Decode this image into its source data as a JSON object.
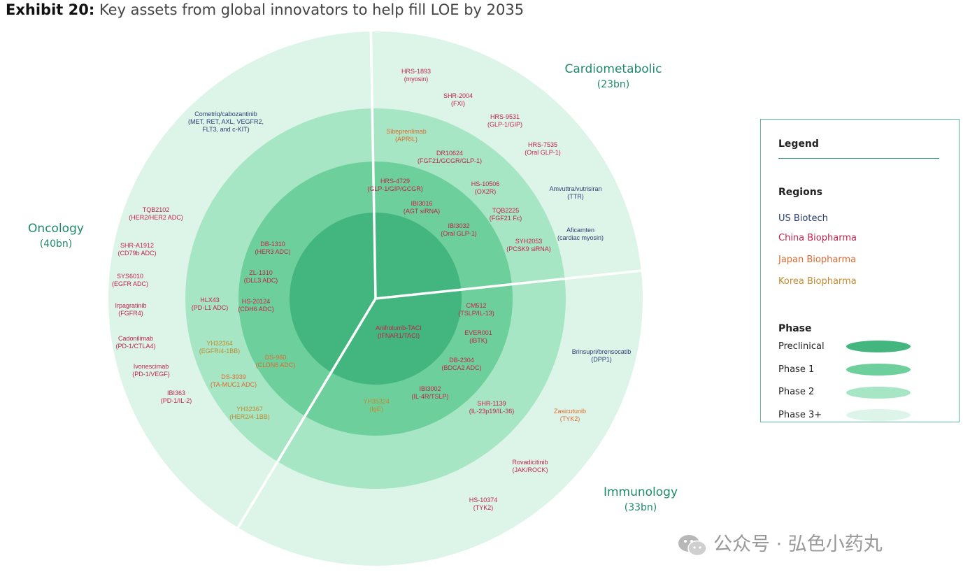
{
  "title": {
    "bold": "Exhibit 20:",
    "text": "Key assets from global innovators to help fill LOE by 2035"
  },
  "colors": {
    "preclinical": "#43b57e",
    "phase1": "#6dd09c",
    "phase2": "#a7e6c4",
    "phase3": "#dcf5e8",
    "us": "#2c3e72",
    "china": "#c2224a",
    "japan": "#e0692f",
    "korea": "#c08a2f",
    "segment_title": "#1e8a6a"
  },
  "segments": [
    {
      "name": "Oncology",
      "size": "(40bn)"
    },
    {
      "name": "Cardiometabolic",
      "size": "(23bn)"
    },
    {
      "name": "Immunology",
      "size": "(33bn)"
    }
  ],
  "assets": [
    {
      "name": "Cometriq/cabozantinib",
      "target": "(MET, RET, AXL, VEGFR2,",
      "target2": "FLT3, and c-KIT)",
      "region": "us",
      "phase": "Phase 3+"
    },
    {
      "name": "TQB2102",
      "target": "(HER2/HER2 ADC)",
      "region": "china",
      "phase": "Phase 3+"
    },
    {
      "name": "SHR-A1912",
      "target": "(CD79b ADC)",
      "region": "china",
      "phase": "Phase 3+"
    },
    {
      "name": "SYS6010",
      "target": "(EGFR ADC)",
      "region": "china",
      "phase": "Phase 3+"
    },
    {
      "name": "Irpagratinib",
      "target": "(FGFR4)",
      "region": "china",
      "phase": "Phase 3+"
    },
    {
      "name": "Cadonilimab",
      "target": "(PD-1/CTLA4)",
      "region": "china",
      "phase": "Phase 3+"
    },
    {
      "name": "Ivonescimab",
      "target": "(PD-1/VEGF)",
      "region": "china",
      "phase": "Phase 3+"
    },
    {
      "name": "IBI363",
      "target": "(PD-1/IL-2)",
      "region": "china",
      "phase": "Phase 3+"
    },
    {
      "name": "HLX43",
      "target": "(PD-L1 ADC)",
      "region": "china",
      "phase": "Phase 2"
    },
    {
      "name": "YH32364",
      "target": "(EGFR/4-1BB)",
      "region": "korea",
      "phase": "Phase 2"
    },
    {
      "name": "DS-3939",
      "target": "(TA-MUC1 ADC)",
      "region": "japan",
      "phase": "Phase 2"
    },
    {
      "name": "YH32367",
      "target": "(HER2/4-1BB)",
      "region": "korea",
      "phase": "Phase 2"
    },
    {
      "name": "DB-1310",
      "target": "(HER3 ADC)",
      "region": "china",
      "phase": "Phase 1"
    },
    {
      "name": "ZL-1310",
      "target": "(DLL3 ADC)",
      "region": "china",
      "phase": "Phase 1"
    },
    {
      "name": "HS-20124",
      "target": "(CDH6 ADC)",
      "region": "china",
      "phase": "Phase 1"
    },
    {
      "name": "DS-960",
      "target": "(CLDN6 ADC)",
      "region": "japan",
      "phase": "Phase 1"
    },
    {
      "name": "HRS-1893",
      "target": "(myosin)",
      "region": "china",
      "phase": "Phase 3+"
    },
    {
      "name": "SHR-2004",
      "target": "(FXI)",
      "region": "china",
      "phase": "Phase 3+"
    },
    {
      "name": "HRS-9531",
      "target": "(GLP-1/GIP)",
      "region": "china",
      "phase": "Phase 3+"
    },
    {
      "name": "HRS-7535",
      "target": "(Oral GLP-1)",
      "region": "china",
      "phase": "Phase 3+"
    },
    {
      "name": "Amvuttra/vutrisiran",
      "target": "(TTR)",
      "region": "us",
      "phase": "Phase 3+"
    },
    {
      "name": "Aficamten",
      "target": "(cardiac myosin)",
      "region": "us",
      "phase": "Phase 3+"
    },
    {
      "name": "Sibeprenlimab",
      "target": "(APRIL)",
      "region": "japan",
      "phase": "Phase 2"
    },
    {
      "name": "DR10624",
      "target": "(FGF21/GCGR/GLP-1)",
      "region": "china",
      "phase": "Phase 2"
    },
    {
      "name": "HS-10506",
      "target": "(OX2R)",
      "region": "china",
      "phase": "Phase 2"
    },
    {
      "name": "TQB2225",
      "target": "(FGF21 Fc)",
      "region": "china",
      "phase": "Phase 2"
    },
    {
      "name": "SYH2053",
      "target": "(PCSK9 siRNA)",
      "region": "china",
      "phase": "Phase 2"
    },
    {
      "name": "HRS-4729",
      "target": "(GLP-1/GIP/GCGR)",
      "region": "china",
      "phase": "Phase 1"
    },
    {
      "name": "IBI3016",
      "target": "(AGT siRNA)",
      "region": "china",
      "phase": "Phase 1"
    },
    {
      "name": "IBI3032",
      "target": "(Oral GLP-1)",
      "region": "china",
      "phase": "Phase 1"
    },
    {
      "name": "Anifrolumb-TACI",
      "target": "(IFNAR1/TACI)",
      "region": "china",
      "phase": "Preclinical"
    },
    {
      "name": "CM512",
      "target": "(TSLP/IL-13)",
      "region": "china",
      "phase": "Phase 1"
    },
    {
      "name": "EVER001",
      "target": "(iBTK)",
      "region": "china",
      "phase": "Phase 1"
    },
    {
      "name": "DB-2304",
      "target": "(BDCA2 ADC)",
      "region": "china",
      "phase": "Phase 1"
    },
    {
      "name": "IBI3002",
      "target": "(IL-4R/TSLP)",
      "region": "china",
      "phase": "Phase 1"
    },
    {
      "name": "YH35324",
      "target": "(IgE)",
      "region": "korea",
      "phase": "Phase 1"
    },
    {
      "name": "SHR-1139",
      "target": "(IL-23p19/IL-36)",
      "region": "china",
      "phase": "Phase 2"
    },
    {
      "name": "Brinsupri/brensocatib",
      "target": "(DPP1)",
      "region": "us",
      "phase": "Phase 3+"
    },
    {
      "name": "Zasicutunib",
      "target": "(TYK2)",
      "region": "japan",
      "phase": "Phase 3+"
    },
    {
      "name": "Rovadicitinib",
      "target": "(JAK/ROCK)",
      "region": "china",
      "phase": "Phase 3+"
    },
    {
      "name": "HS-10374",
      "target": "(TYK2)",
      "region": "china",
      "phase": "Phase 3+"
    }
  ],
  "legend": {
    "title": "Legend",
    "regions_title": "Regions",
    "regions": [
      {
        "label": "US Biotech",
        "key": "us"
      },
      {
        "label": "China Biopharma",
        "key": "china"
      },
      {
        "label": "Japan Biopharma",
        "key": "japan"
      },
      {
        "label": "Korea Biopharma",
        "key": "korea"
      }
    ],
    "phase_title": "Phase",
    "phases": [
      {
        "label": "Preclinical",
        "key": "preclinical"
      },
      {
        "label": "Phase 1",
        "key": "phase1"
      },
      {
        "label": "Phase 2",
        "key": "phase2"
      },
      {
        "label": "Phase 3+",
        "key": "phase3"
      }
    ]
  },
  "watermark": "公众号 · 弘色小药丸"
}
